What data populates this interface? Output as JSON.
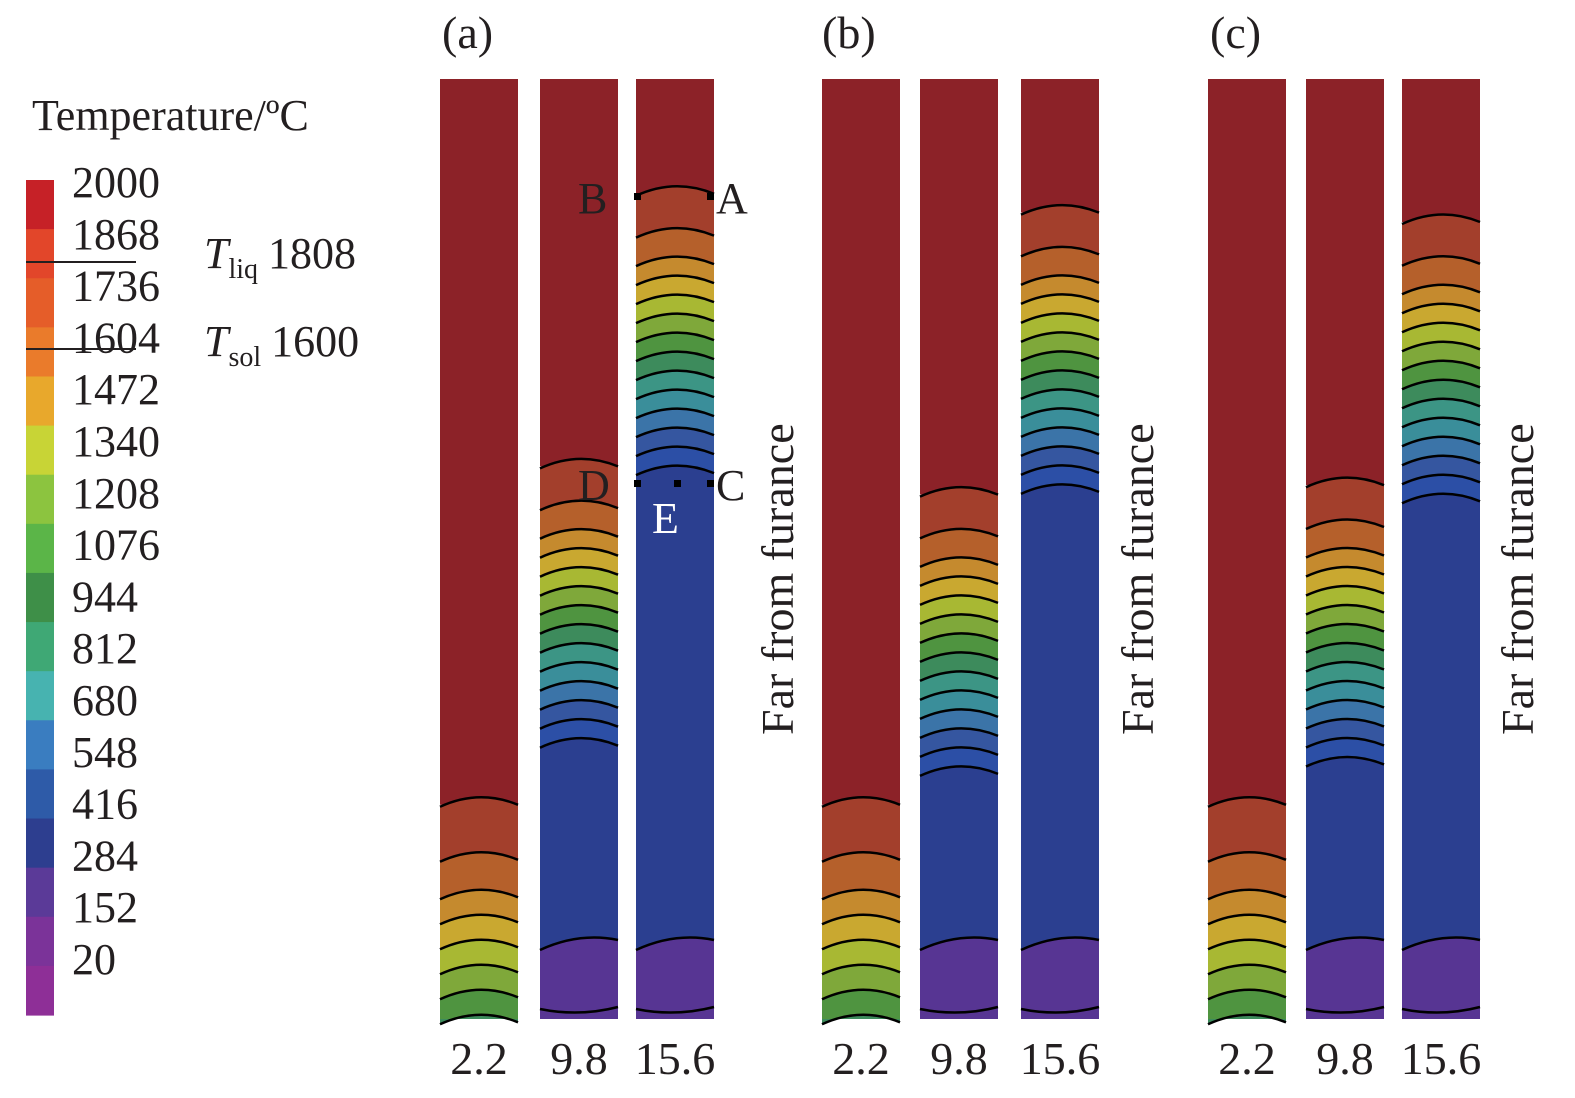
{
  "colorbar": {
    "title": "Temperature/ºC",
    "ticks": [
      "2000",
      "1868",
      "1736",
      "1604",
      "1472",
      "1340",
      "1208",
      "1076",
      "944",
      "812",
      "680",
      "548",
      "416",
      "284",
      "152",
      "20"
    ],
    "colors": [
      "#c62127",
      "#e2462a",
      "#e55d29",
      "#ea7b2b",
      "#e8a82c",
      "#c8d436",
      "#8cc43f",
      "#5bb548",
      "#3e8f48",
      "#3fa875",
      "#47b3b0",
      "#3a7dc0",
      "#2e5ba8",
      "#2d3e8f",
      "#5b3a98",
      "#7b3399",
      "#8e2f97"
    ]
  },
  "thresholds": {
    "liquidus": {
      "symbol": "T",
      "subscript": "liq",
      "value": "1808"
    },
    "solidus": {
      "symbol": "T",
      "subscript": "sol",
      "value": "1600"
    }
  },
  "panels": [
    {
      "label": "(a)",
      "side_label": "Far from furance",
      "columns": [
        "2.2",
        "9.8",
        "15.6"
      ],
      "points": [
        "A",
        "B",
        "C",
        "D",
        "E"
      ],
      "hot_fraction": [
        0.77,
        0.41,
        0.12
      ]
    },
    {
      "label": "(b)",
      "side_label": "Far from furance",
      "columns": [
        "2.2",
        "9.8",
        "15.6"
      ],
      "hot_fraction": [
        0.77,
        0.44,
        0.14
      ]
    },
    {
      "label": "(c)",
      "side_label": "Far from furance",
      "columns": [
        "2.2",
        "9.8",
        "15.6"
      ],
      "hot_fraction": [
        0.77,
        0.43,
        0.15
      ]
    }
  ],
  "band_colors": {
    "hot": "#8c2228",
    "gradient": [
      "#a33f2c",
      "#b5602b",
      "#c58a2e",
      "#c9a830",
      "#a8b833",
      "#7fa83a",
      "#4f9440",
      "#3d8b5c",
      "#3c9585",
      "#3a8e9a",
      "#3b74a8",
      "#3556a0",
      "#2c4fa6"
    ],
    "cold": "#2b3f90",
    "bottom": "#573593"
  }
}
